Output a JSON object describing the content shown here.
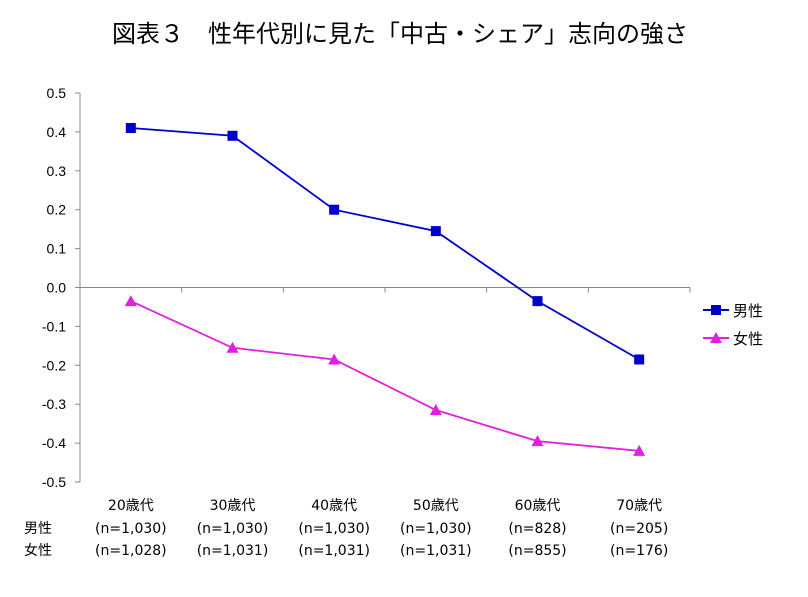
{
  "chart_data": {
    "type": "line",
    "title": "図表３　性年代別に見た「中古・シェア」志向の強さ",
    "categories": [
      "20歳代",
      "30歳代",
      "40歳代",
      "50歳代",
      "60歳代",
      "70歳代"
    ],
    "ylim": [
      -0.5,
      0.5
    ],
    "yticks": [
      "0.5",
      "0.4",
      "0.3",
      "0.2",
      "0.1",
      "0.0",
      "-0.1",
      "-0.2",
      "-0.3",
      "-0.4",
      "-0.5"
    ],
    "grid": false,
    "legend_position": "right",
    "series": [
      {
        "name": "男性",
        "color": "#0000cc",
        "marker": "square",
        "values": [
          0.41,
          0.39,
          0.2,
          0.145,
          -0.035,
          -0.185
        ],
        "sample_sizes": [
          "(n=1,030)",
          "(n=1,030)",
          "(n=1,030)",
          "(n=1,030)",
          "(n=828)",
          "(n=205)"
        ]
      },
      {
        "name": "女性",
        "color": "#e020e0",
        "marker": "triangle",
        "values": [
          -0.035,
          -0.155,
          -0.185,
          -0.315,
          -0.395,
          -0.42
        ],
        "sample_sizes": [
          "(n=1,028)",
          "(n=1,031)",
          "(n=1,031)",
          "(n=1,031)",
          "(n=855)",
          "(n=176)"
        ]
      }
    ]
  }
}
